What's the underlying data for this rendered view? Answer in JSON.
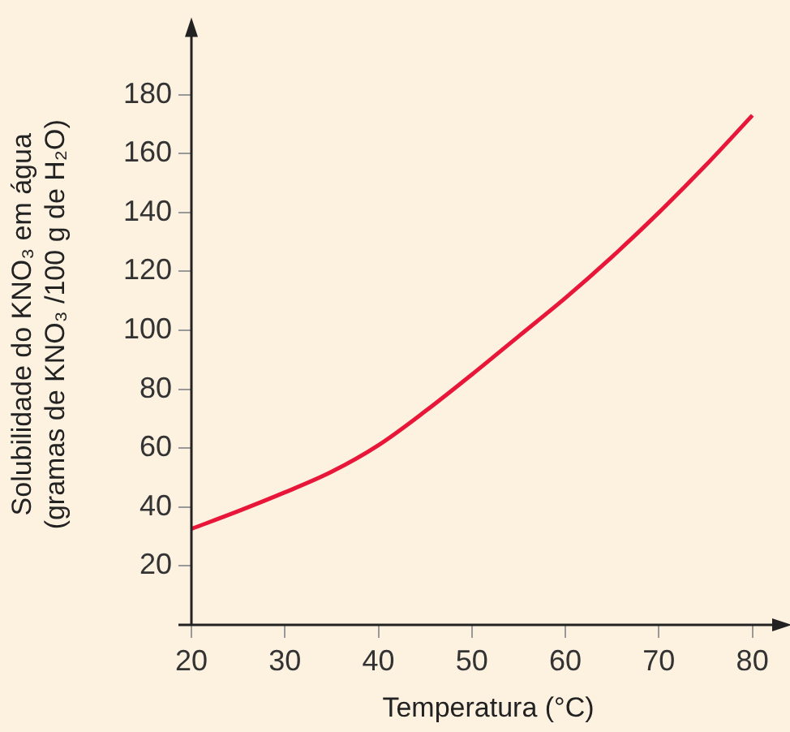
{
  "chart_data": {
    "type": "line",
    "xlabel": "Temperatura (°C)",
    "ylabel": "Solubilidade do KNO₃ em água\n(gramas de KNO₃ /100 g de H₂O)",
    "x": [
      20,
      25,
      30,
      35,
      40,
      45,
      50,
      55,
      60,
      65,
      70,
      75,
      80
    ],
    "series": [
      {
        "color": "#e8173a",
        "values": [
          32.6,
          38.6,
          45,
          52,
          61,
          72.5,
          85,
          98,
          111,
          125,
          140,
          156,
          173
        ]
      }
    ],
    "xlim": [
      20,
      83.5
    ],
    "ylim": [
      0,
      204
    ],
    "xticks": [
      20,
      30,
      40,
      50,
      60,
      70,
      80
    ],
    "yticks": [
      20,
      40,
      60,
      80,
      100,
      120,
      140,
      160,
      180
    ],
    "grid": false,
    "legend": false,
    "marker": "none",
    "line_style": "solid"
  }
}
